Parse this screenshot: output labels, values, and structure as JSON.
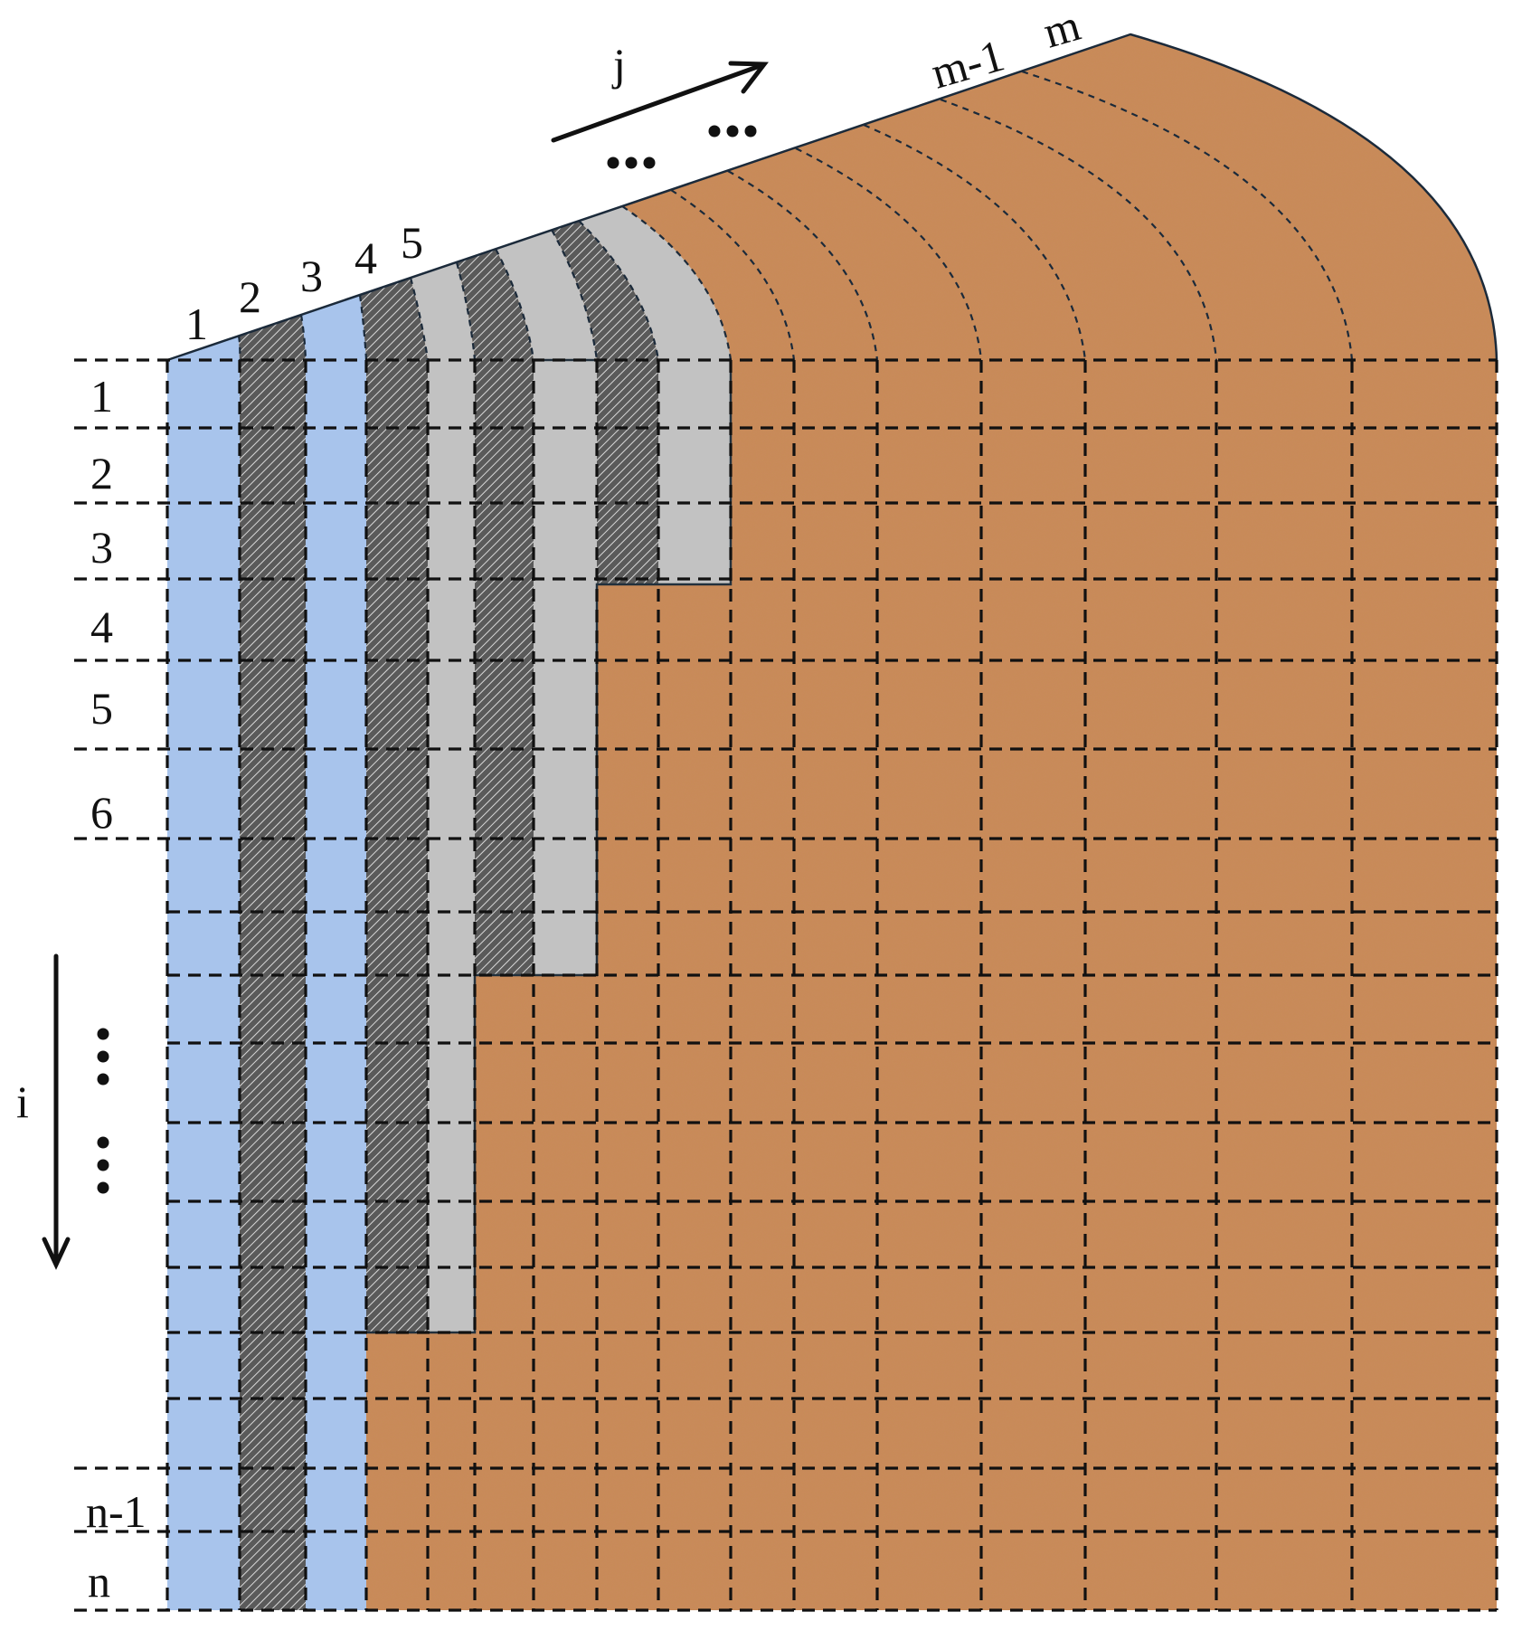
{
  "colors": {
    "soil": "#c98a5a",
    "blue_layer": "#a8c4ec",
    "gray_layer": "#c2c2c2",
    "hatch_layer": "#3c3c3c",
    "line": "#111111"
  },
  "labels": {
    "columns_top": [
      "1",
      "2",
      "3",
      "4",
      "5"
    ],
    "columns_end": [
      "m-1",
      "m"
    ],
    "rows": [
      "1",
      "2",
      "3",
      "4",
      "5",
      "6"
    ],
    "rows_end": [
      "n-1",
      "n"
    ],
    "j_axis": "j",
    "i_axis": "i",
    "ellipsis": "…"
  }
}
